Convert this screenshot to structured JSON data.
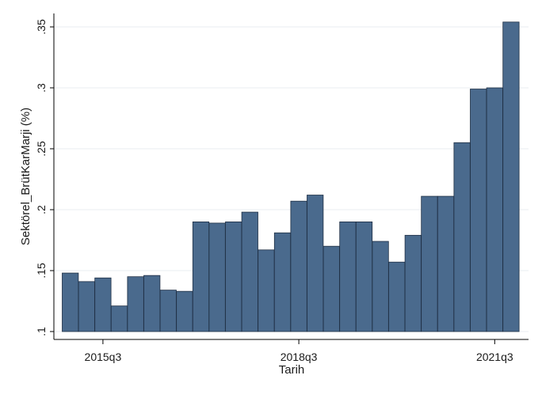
{
  "chart_data": {
    "type": "bar",
    "title": "",
    "xlabel": "Tarih",
    "ylabel": "Sektörel_BrütKarMarji (%)",
    "ylim": [
      0.1,
      0.36
    ],
    "yticks": [
      {
        "value": 0.1,
        "label": ".1"
      },
      {
        "value": 0.15,
        "label": ".15"
      },
      {
        "value": 0.2,
        "label": ".2"
      },
      {
        "value": 0.25,
        "label": ".25"
      },
      {
        "value": 0.3,
        "label": ".3"
      },
      {
        "value": 0.35,
        "label": ".35"
      }
    ],
    "xticks": [
      {
        "value": "2015q3",
        "label": "2015q3"
      },
      {
        "value": "2018q3",
        "label": "2018q3"
      },
      {
        "value": "2021q3",
        "label": "2021q3"
      }
    ],
    "categories": [
      "2015q1",
      "2015q2",
      "2015q3",
      "2015q4",
      "2016q1",
      "2016q2",
      "2016q3",
      "2016q4",
      "2017q1",
      "2017q2",
      "2017q3",
      "2017q4",
      "2018q1",
      "2018q2",
      "2018q3",
      "2018q4",
      "2019q1",
      "2019q2",
      "2019q3",
      "2019q4",
      "2020q1",
      "2020q2",
      "2020q3",
      "2020q4",
      "2021q1",
      "2021q2",
      "2021q3",
      "2021q4"
    ],
    "values": [
      0.148,
      0.141,
      0.144,
      0.121,
      0.145,
      0.146,
      0.134,
      0.133,
      0.19,
      0.189,
      0.19,
      0.198,
      0.167,
      0.181,
      0.207,
      0.212,
      0.17,
      0.19,
      0.19,
      0.174,
      0.157,
      0.179,
      0.211,
      0.211,
      0.255,
      0.299,
      0.3,
      0.354
    ],
    "bar_color": "#4a6a8d",
    "grid": true,
    "legend": "none"
  }
}
